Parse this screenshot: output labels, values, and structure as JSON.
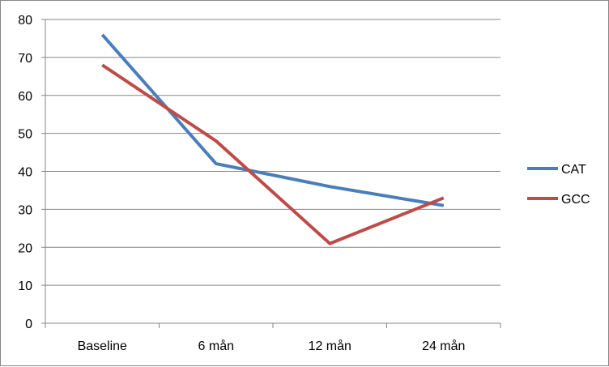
{
  "chart_data": {
    "type": "line",
    "categories": [
      "Baseline",
      "6 mån",
      "12 mån",
      "24 mån"
    ],
    "series": [
      {
        "name": "CAT",
        "values": [
          76,
          42,
          36,
          31
        ],
        "color": "#4A7EBB"
      },
      {
        "name": "GCC",
        "values": [
          68,
          48,
          21,
          33
        ],
        "color": "#BE4B48"
      }
    ],
    "ylim": [
      0,
      80
    ],
    "yticks": [
      0,
      10,
      20,
      30,
      40,
      50,
      60,
      70,
      80
    ],
    "grid": true,
    "legend": "right",
    "title": "",
    "xlabel": "",
    "ylabel": ""
  }
}
